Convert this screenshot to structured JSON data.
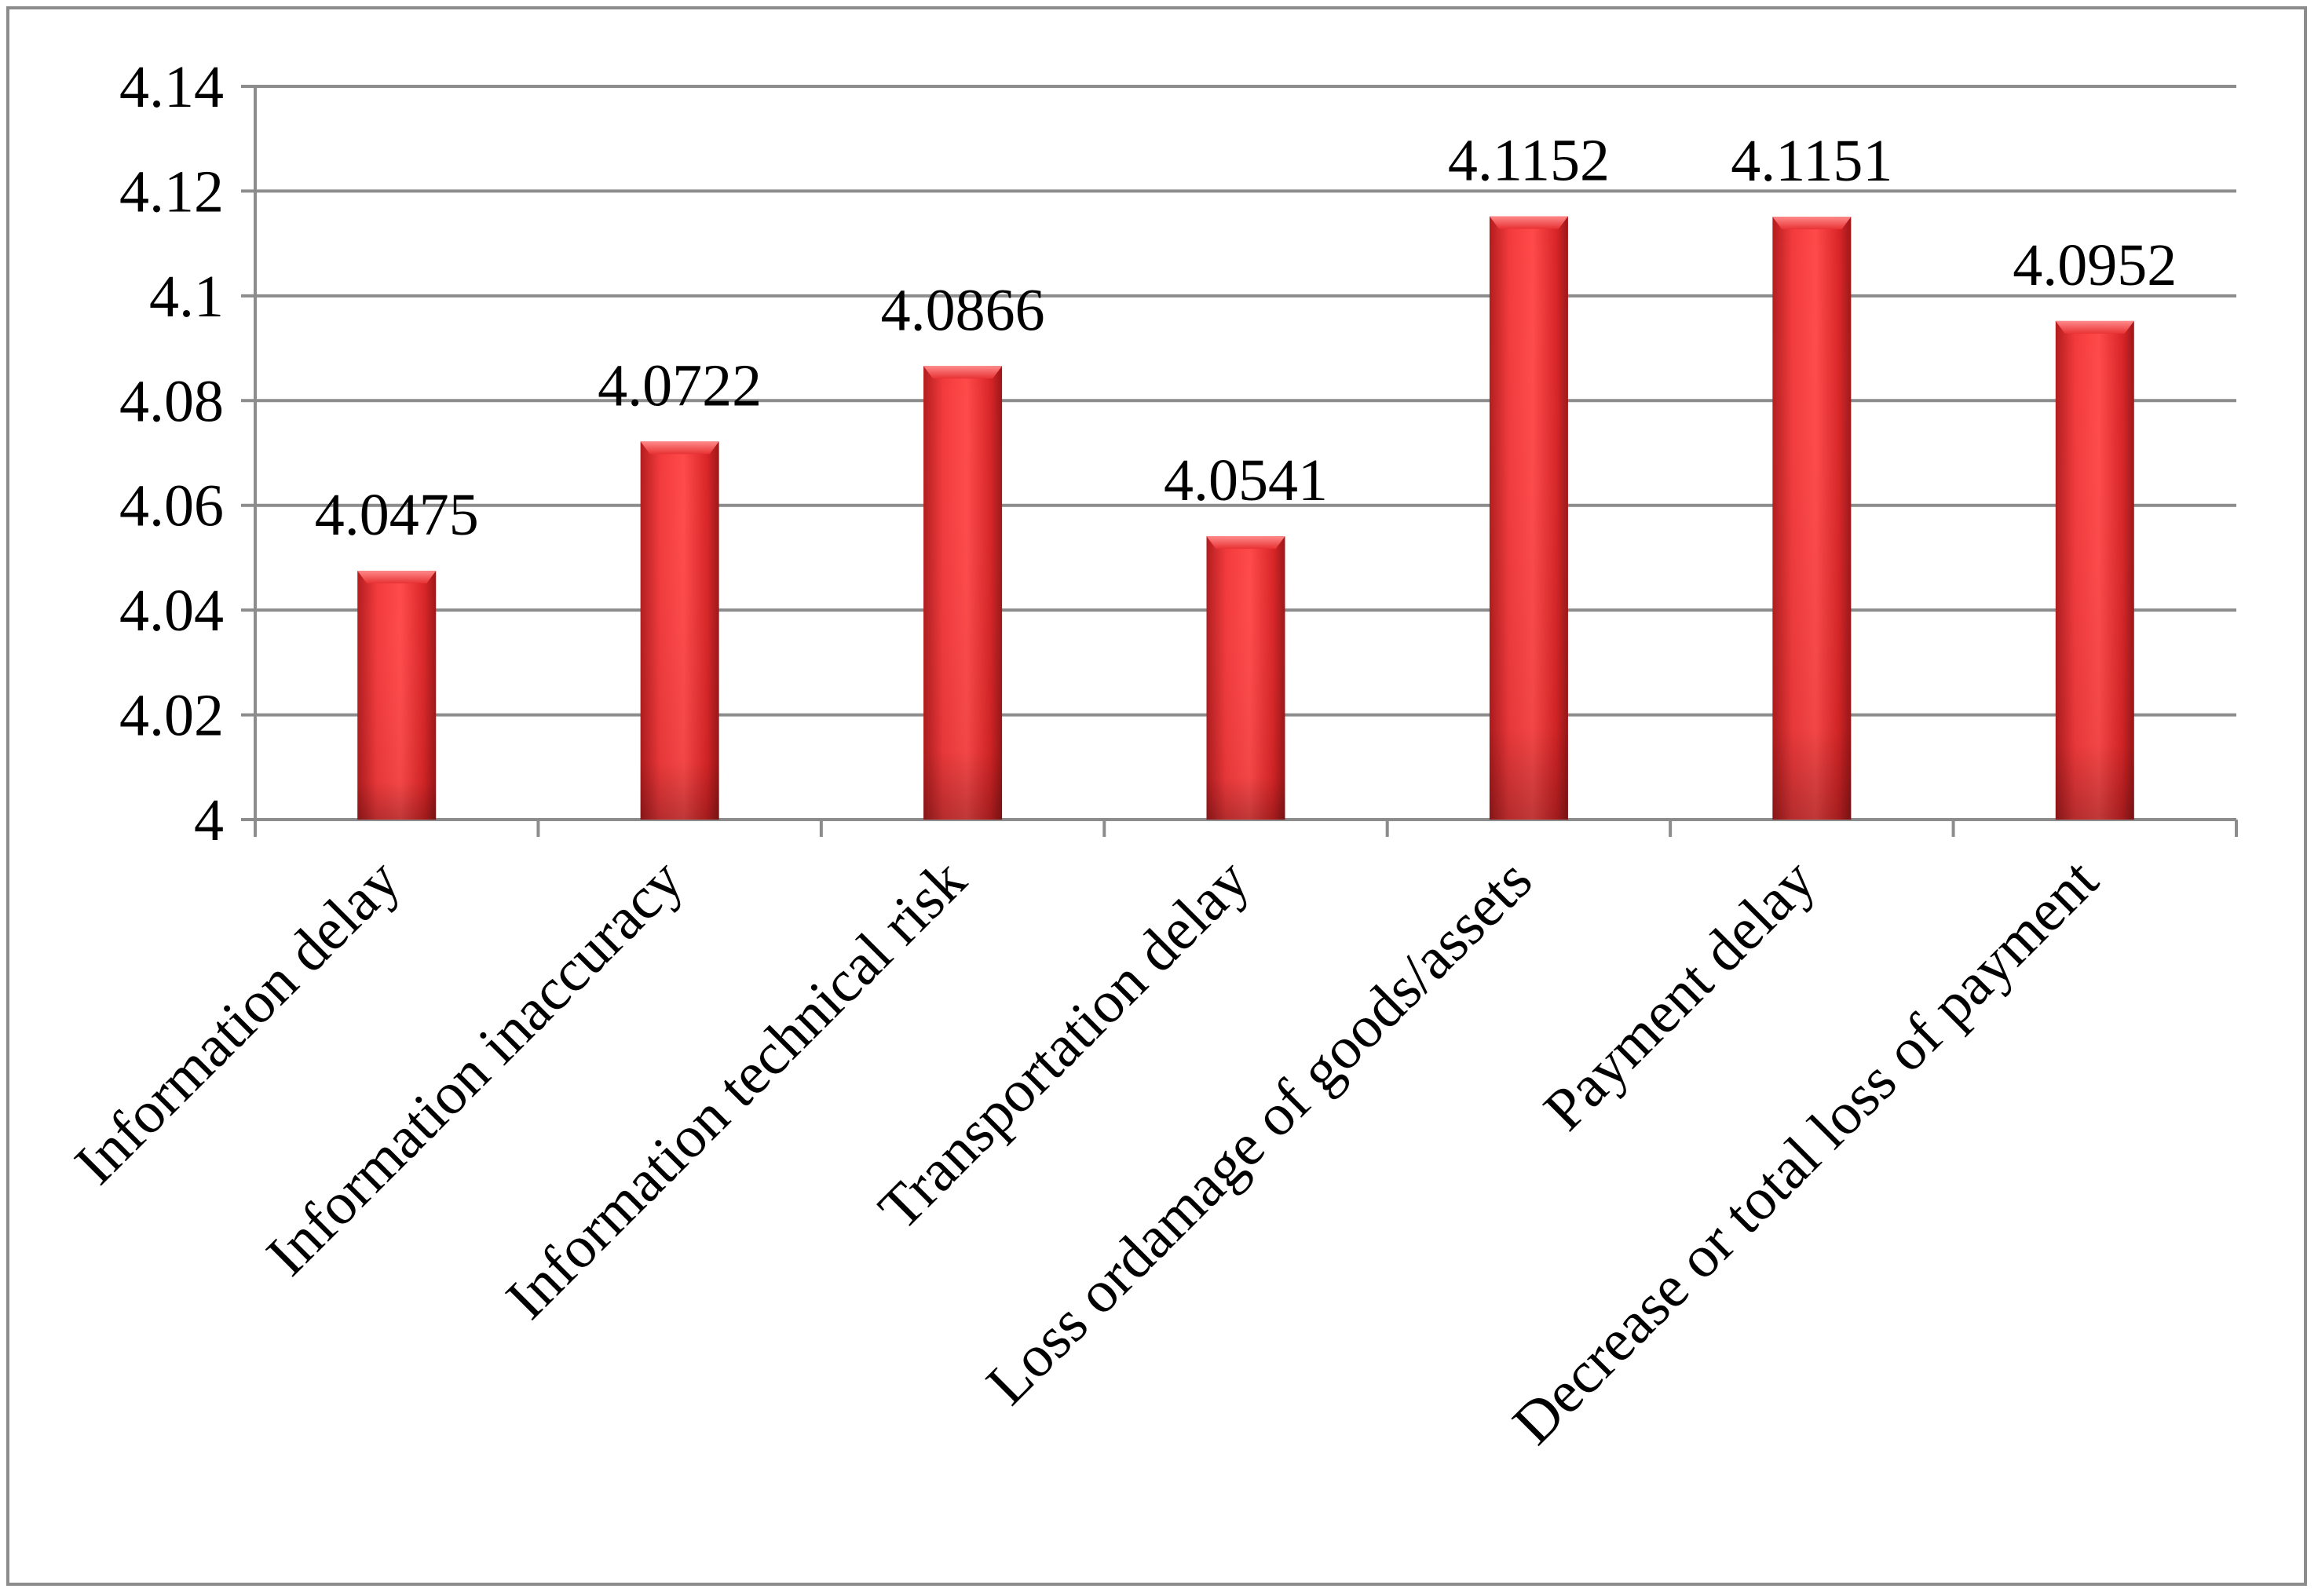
{
  "chart_data": {
    "type": "bar",
    "title": "",
    "xlabel": "",
    "ylabel": "",
    "categories": [
      "Information delay",
      "Information inaccuracy",
      "Information technical risk",
      "Transportation delay",
      "Loss ordamage of goods/assets",
      "Payment delay",
      "Decrease or total loss of payment"
    ],
    "values": [
      4.0475,
      4.0722,
      4.0866,
      4.0541,
      4.1152,
      4.1151,
      4.0952
    ],
    "data_labels": [
      "4.0475",
      "4.0722",
      "4.0866",
      "4.0541",
      "4.1152",
      "4.1151",
      "4.0952"
    ],
    "ylim": [
      4,
      4.14
    ],
    "yticks": [
      4,
      4.02,
      4.04,
      4.06,
      4.08,
      4.1,
      4.12,
      4.14
    ],
    "ytick_labels": [
      "4",
      "4.02",
      "4.04",
      "4.06",
      "4.08",
      "4.1",
      "4.12",
      "4.14"
    ],
    "grid": true,
    "legend": "none",
    "colors": {
      "bar": "#e8282b",
      "bar_light": "#ff5a5a",
      "bar_dark": "#a81a1c",
      "grid": "#8c8c8c",
      "axis": "#8c8c8c",
      "frame": "#8c8c8c"
    }
  }
}
